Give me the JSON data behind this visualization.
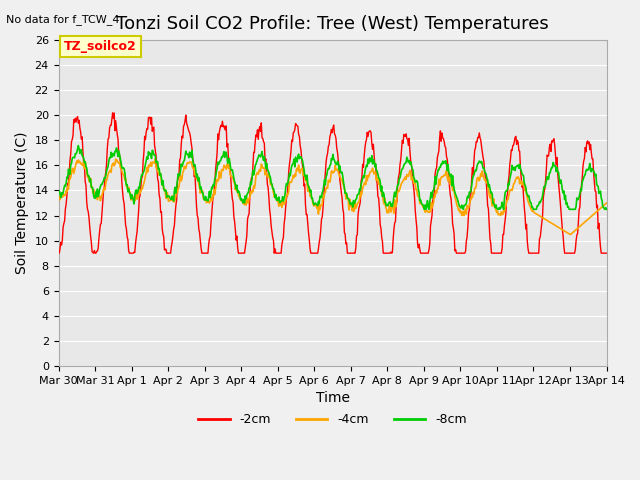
{
  "title": "Tonzi Soil CO2 Profile: Tree (West) Temperatures",
  "no_data_label": "No data for f_TCW_4",
  "xlabel": "Time",
  "ylabel": "Soil Temperature (C)",
  "ylim": [
    0,
    26
  ],
  "yticks": [
    0,
    2,
    4,
    6,
    8,
    10,
    12,
    14,
    16,
    18,
    20,
    22,
    24,
    26
  ],
  "legend_label": "TZ_soilco2",
  "line_labels": [
    "-2cm",
    "-4cm",
    "-8cm"
  ],
  "line_colors": [
    "#ff0000",
    "#ffa500",
    "#00cc00"
  ],
  "plot_bg": "#e8e8e8",
  "xtick_labels": [
    "Mar 30",
    "Mar 31",
    "Apr 1",
    "Apr 2",
    "Apr 3",
    "Apr 4",
    "Apr 5",
    "Apr 6",
    "Apr 7",
    "Apr 8",
    "Apr 9",
    "Apr 10",
    "Apr 11",
    "Apr 12",
    "Apr 13",
    "Apr 14"
  ],
  "grid_color": "#ffffff",
  "title_fontsize": 13,
  "axis_label_fontsize": 10,
  "tick_fontsize": 8
}
